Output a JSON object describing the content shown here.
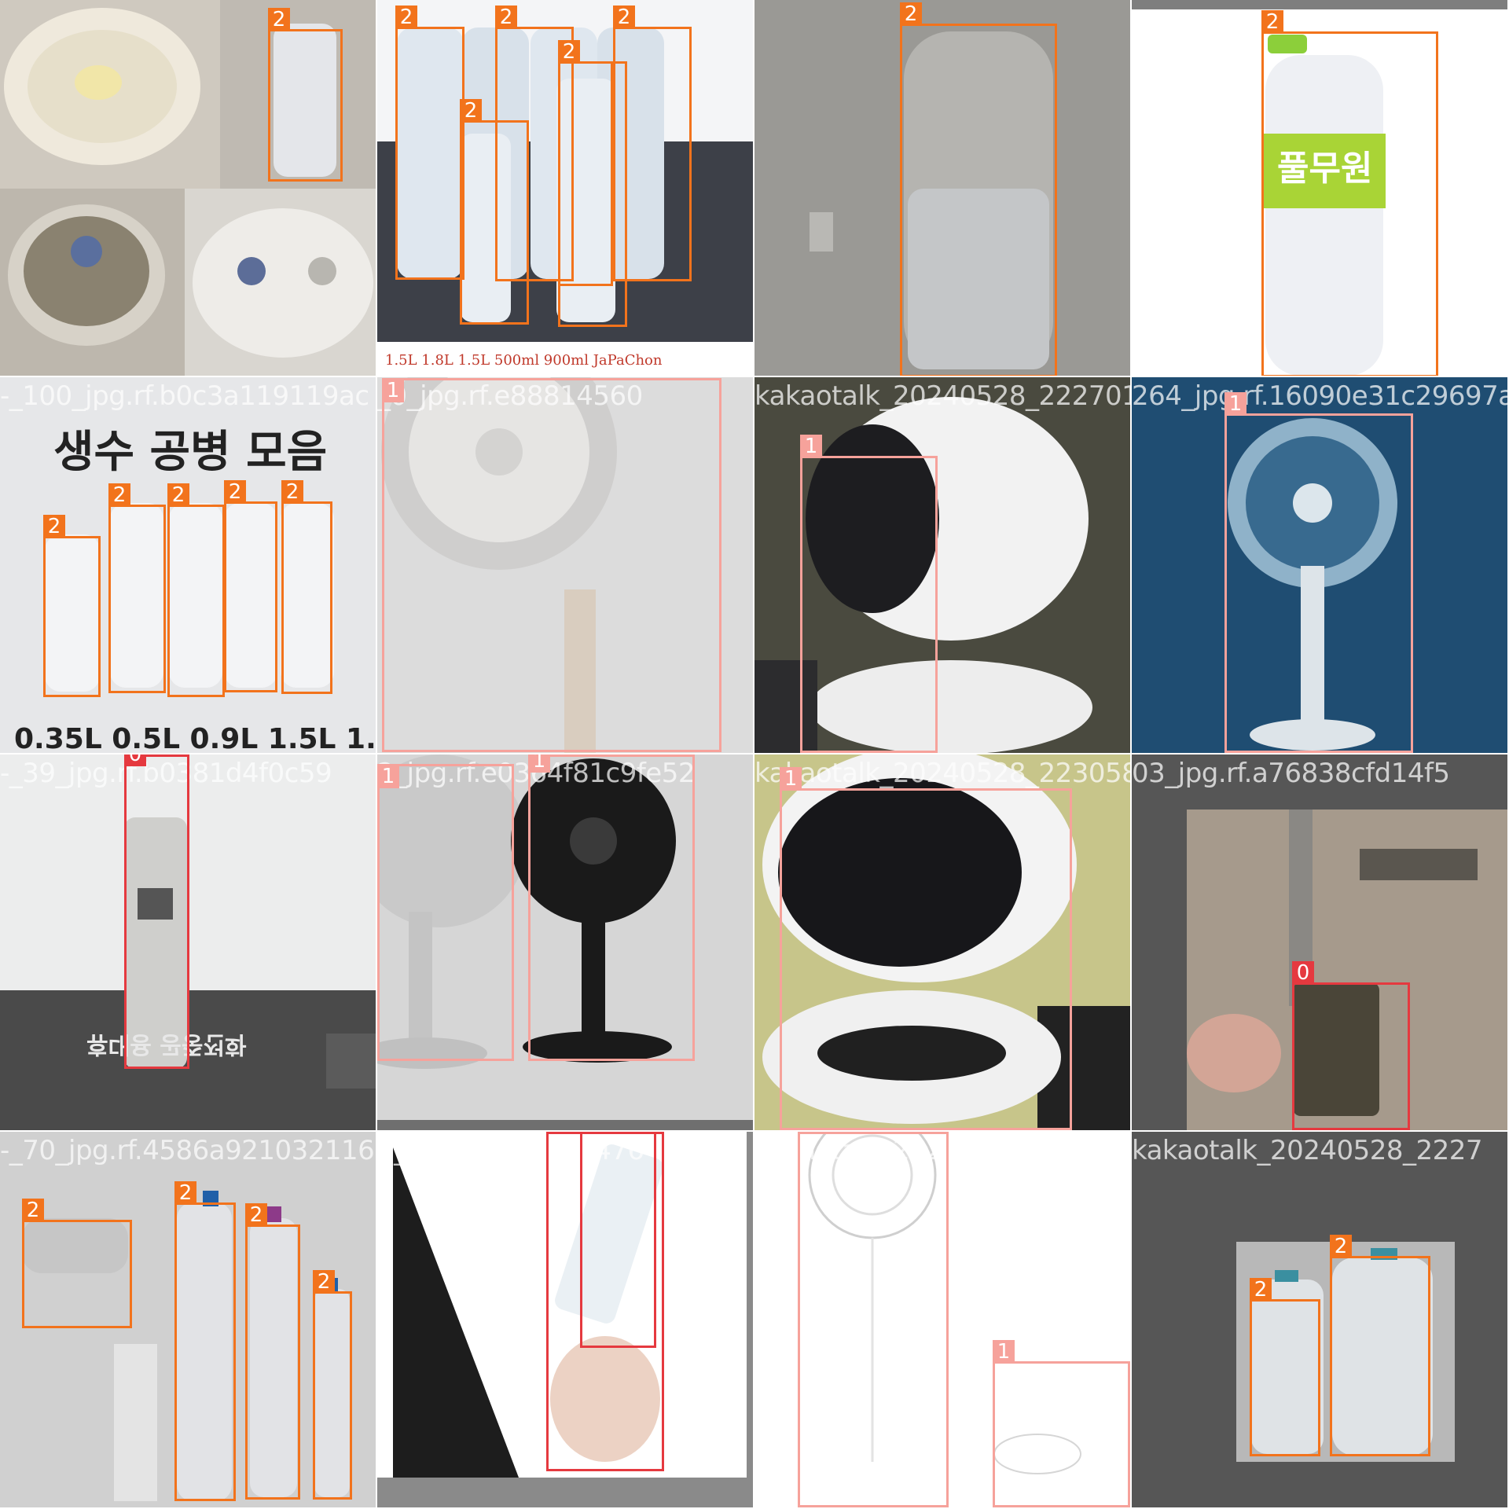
{
  "colors": {
    "class_0": "#e5393f",
    "class_1": "#f6a29b",
    "class_2": "#f2731c"
  },
  "tiles": [
    {
      "filename": "",
      "text": "",
      "boxes": [
        {
          "label": "2"
        }
      ]
    },
    {
      "filename": "",
      "text": "1.5L  1.8L  1.5L  500ml  900ml  JaPaChon",
      "boxes": [
        {
          "label": "2"
        },
        {
          "label": "2"
        },
        {
          "label": "2"
        },
        {
          "label": "2"
        },
        {
          "label": "2"
        },
        {
          "label": "2"
        }
      ]
    },
    {
      "filename": "",
      "text": "",
      "boxes": [
        {
          "label": "2"
        }
      ]
    },
    {
      "filename": "",
      "text": "풀무원",
      "boxes": [
        {
          "label": "2"
        }
      ]
    },
    {
      "filename": "-_100_jpg.rf.b0c3a119119ac",
      "text": "생수 공병 모음",
      "text2": "0.35L 0.5L 0.9L 1.5L 1.8L",
      "boxes": [
        {
          "label": "2"
        },
        {
          "label": "2"
        },
        {
          "label": "2"
        },
        {
          "label": "2"
        },
        {
          "label": "2"
        }
      ]
    },
    {
      "filename": "_0_jpg.rf.e88814560",
      "text": "",
      "boxes": [
        {
          "label": "1"
        }
      ]
    },
    {
      "filename": "kakaotalk_20240528_222701",
      "text": "",
      "boxes": [
        {
          "label": "1"
        }
      ]
    },
    {
      "filename": "264_jpg.rf.16090e31c29697a",
      "text": "",
      "boxes": [
        {
          "label": "1"
        }
      ]
    },
    {
      "filename": "-_39_jpg.rf.b0381d4f0c59",
      "text": "휴대용 공중전화",
      "boxes": [
        {
          "label": "0"
        }
      ]
    },
    {
      "filename": "2_jpg.rf.e0364f81c9fe52",
      "text": "",
      "boxes": [
        {
          "label": "1"
        },
        {
          "label": "1"
        }
      ]
    },
    {
      "filename": "kakaotalk_20240528_223058",
      "text": "",
      "boxes": [
        {
          "label": "1"
        }
      ]
    },
    {
      "filename": "03_jpg.rf.a76838cfd14f5",
      "text": "",
      "boxes": [
        {
          "label": "0"
        }
      ]
    },
    {
      "filename": "-_70_jpg.rf.4586a921032116",
      "text": "",
      "boxes": [
        {
          "label": "2"
        },
        {
          "label": "2"
        },
        {
          "label": "2"
        },
        {
          "label": "2"
        }
      ]
    },
    {
      "filename": "3_jpg.rf.5e77c53476",
      "text": "",
      "boxes": [
        {
          "label": "0"
        },
        {
          "label": "0"
        }
      ]
    },
    {
      "filename": "kakaotalk_20240528_2230",
      "text": "",
      "boxes": [
        {
          "label": "1"
        },
        {
          "label": "1"
        }
      ]
    },
    {
      "filename": "kakaotalk_20240528_2227",
      "text": "",
      "boxes": [
        {
          "label": "2"
        },
        {
          "label": "2"
        }
      ]
    }
  ]
}
